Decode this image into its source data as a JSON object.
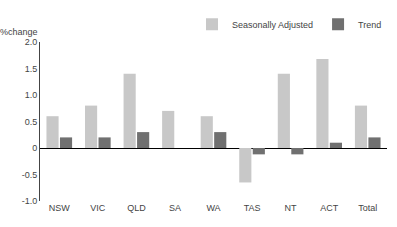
{
  "chart_data": {
    "type": "bar",
    "ylabel": "%change",
    "categories": [
      "NSW",
      "VIC",
      "QLD",
      "SA",
      "WA",
      "TAS",
      "NT",
      "ACT",
      "Total"
    ],
    "series": [
      {
        "name": "Seasonally Adjusted",
        "color": "#c8c8c8",
        "values": [
          0.6,
          0.8,
          1.4,
          0.7,
          0.6,
          -0.65,
          1.4,
          1.68,
          0.8
        ]
      },
      {
        "name": "Trend",
        "color": "#707070",
        "values": [
          0.2,
          0.2,
          0.3,
          0.0,
          0.3,
          -0.12,
          -0.12,
          0.1,
          0.2
        ]
      }
    ],
    "ylim": [
      -1.0,
      2.0
    ],
    "yticks": [
      {
        "value": -1.0,
        "label": "-1.0"
      },
      -0.5,
      0,
      0.5,
      {
        "value": 1.0,
        "label": "1.0"
      },
      1.5,
      {
        "value": 2.0,
        "label": "2.0"
      }
    ],
    "grid": false,
    "legend": "upper right"
  }
}
